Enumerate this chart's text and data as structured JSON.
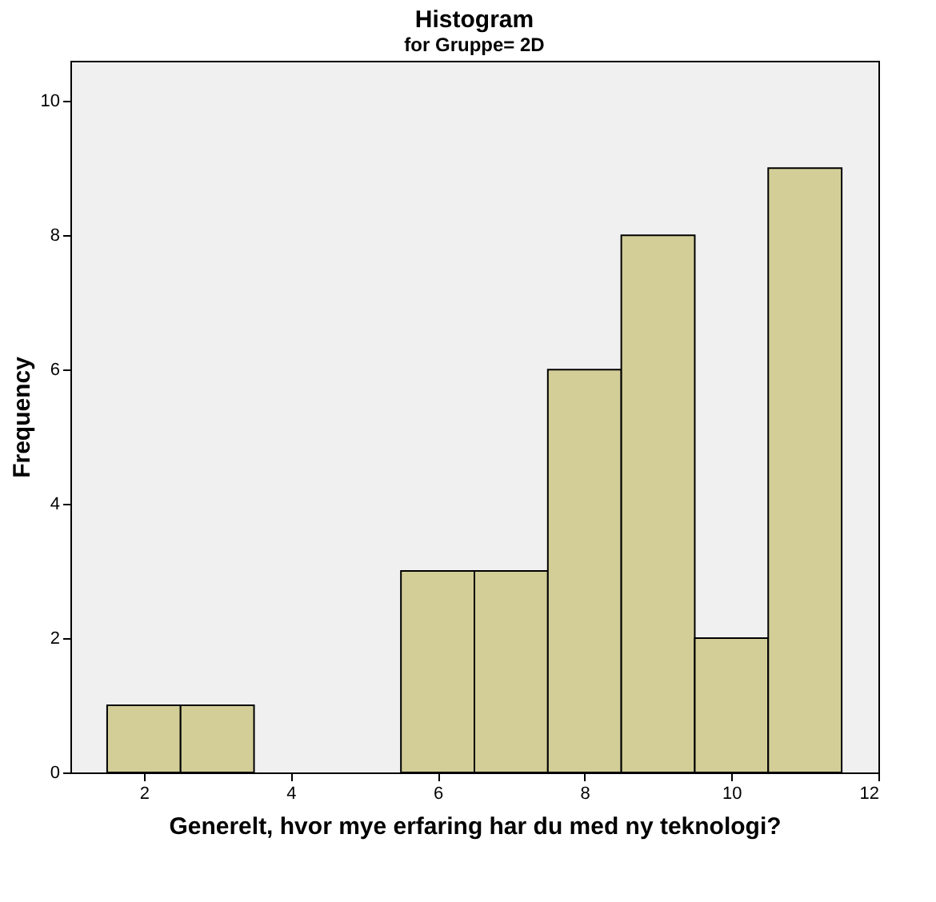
{
  "chart_data": {
    "type": "histogram",
    "title": "Histogram",
    "subtitle": "for Gruppe= 2D",
    "xlabel": "Generelt, hvor mye erfaring har du med ny teknologi?",
    "ylabel": "Frequency",
    "bins": [
      1.5,
      2.5,
      3.5,
      4.5,
      5.5,
      6.5,
      7.5,
      8.5,
      9.5,
      10.5,
      11.5
    ],
    "values": [
      1,
      1,
      0,
      0,
      3,
      3,
      6,
      8,
      2,
      9
    ],
    "color": "#d3ce98",
    "xlim": [
      1,
      12
    ],
    "xticks": [
      2,
      4,
      6,
      8,
      10,
      12
    ],
    "ylim": [
      0,
      10.6
    ],
    "yticks": [
      0,
      2,
      4,
      6,
      8,
      10
    ],
    "grid": false
  }
}
